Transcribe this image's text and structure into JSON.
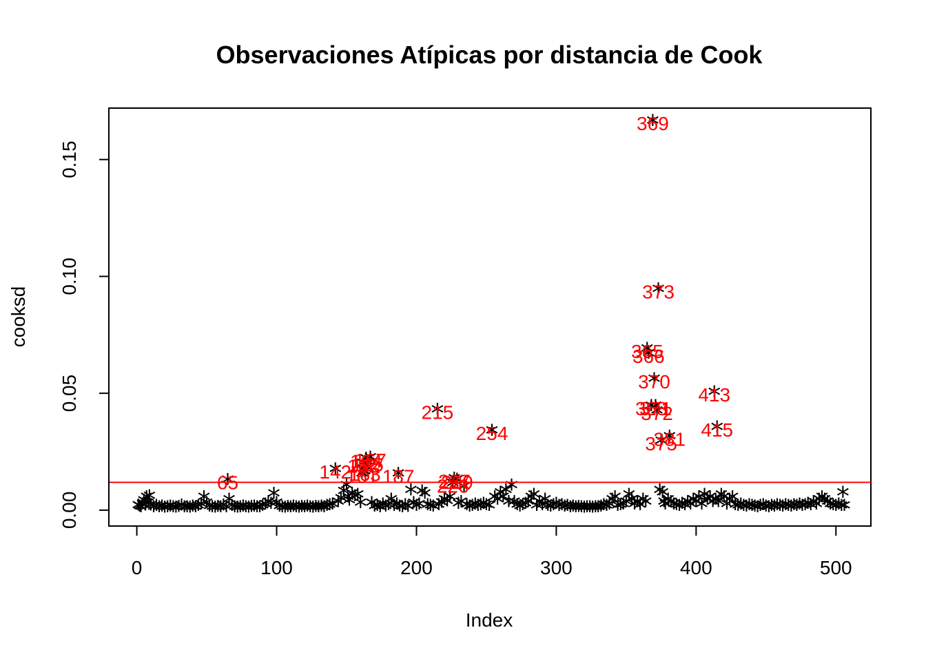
{
  "chart_data": {
    "type": "scatter",
    "title": "Observaciones Atípicas por distancia de Cook",
    "xlabel": "Index",
    "ylabel": "cooksd",
    "xlim": [
      -20,
      525
    ],
    "ylim": [
      -0.0068,
      0.172
    ],
    "x_ticks": [
      0,
      100,
      200,
      300,
      400,
      500
    ],
    "y_ticks": [
      0.0,
      0.05,
      0.1,
      0.15
    ],
    "y_tick_labels": [
      "0.00",
      "0.05",
      "0.10",
      "0.15"
    ],
    "x_tick_labels": [
      "0",
      "100",
      "200",
      "300",
      "400",
      "500"
    ],
    "marker": "*",
    "marker_color": "#000000",
    "grid": false,
    "cutoff_line": {
      "y": 0.0119,
      "color": "#ff0000"
    },
    "label_color": "#ff0000",
    "points": [
      [
        1,
        0.001
      ],
      [
        2,
        0.0005
      ],
      [
        3,
        0.0002
      ],
      [
        4,
        0.0015
      ],
      [
        5,
        0.003
      ],
      [
        6,
        0.001
      ],
      [
        7,
        0.0045
      ],
      [
        8,
        0.002
      ],
      [
        9,
        0.005
      ],
      [
        10,
        0.001
      ],
      [
        12,
        0.0003
      ],
      [
        14,
        0.0008
      ],
      [
        16,
        0.0002
      ],
      [
        18,
        0.0005
      ],
      [
        20,
        0.0001
      ],
      [
        22,
        0.0003
      ],
      [
        24,
        0.0006
      ],
      [
        26,
        0.0002
      ],
      [
        28,
        0.0001
      ],
      [
        30,
        0.0004
      ],
      [
        32,
        0.001
      ],
      [
        34,
        0.0002
      ],
      [
        36,
        0.0003
      ],
      [
        38,
        0.0001
      ],
      [
        40,
        0.0005
      ],
      [
        42,
        0.0002
      ],
      [
        44,
        0.0008
      ],
      [
        46,
        0.0015
      ],
      [
        48,
        0.0045
      ],
      [
        50,
        0.002
      ],
      [
        52,
        0.0005
      ],
      [
        54,
        0.0003
      ],
      [
        56,
        0.0001
      ],
      [
        58,
        0.0004
      ],
      [
        60,
        0.0002
      ],
      [
        62,
        0.001
      ],
      [
        64,
        0.0003
      ],
      [
        65,
        0.0119
      ],
      [
        66,
        0.0035
      ],
      [
        68,
        0.0008
      ],
      [
        70,
        0.0002
      ],
      [
        72,
        0.0001
      ],
      [
        74,
        0.0003
      ],
      [
        76,
        0.0005
      ],
      [
        78,
        0.0002
      ],
      [
        80,
        0.0001
      ],
      [
        82,
        0.0004
      ],
      [
        84,
        0.0006
      ],
      [
        86,
        0.0002
      ],
      [
        88,
        0.0003
      ],
      [
        90,
        0.0008
      ],
      [
        92,
        0.0015
      ],
      [
        94,
        0.0025
      ],
      [
        96,
        0.0018
      ],
      [
        98,
        0.006
      ],
      [
        100,
        0.002
      ],
      [
        102,
        0.0005
      ],
      [
        104,
        0.0003
      ],
      [
        106,
        0.0001
      ],
      [
        108,
        0.0004
      ],
      [
        110,
        0.0002
      ],
      [
        112,
        0.0006
      ],
      [
        114,
        0.0003
      ],
      [
        116,
        0.0001
      ],
      [
        118,
        0.0004
      ],
      [
        120,
        0.0002
      ],
      [
        122,
        0.0005
      ],
      [
        124,
        0.0003
      ],
      [
        126,
        0.0001
      ],
      [
        128,
        0.0004
      ],
      [
        130,
        0.0002
      ],
      [
        132,
        0.0006
      ],
      [
        134,
        0.0003
      ],
      [
        136,
        0.0008
      ],
      [
        138,
        0.0012
      ],
      [
        140,
        0.0015
      ],
      [
        142,
        0.0165
      ],
      [
        144,
        0.0025
      ],
      [
        146,
        0.004
      ],
      [
        148,
        0.007
      ],
      [
        150,
        0.0095
      ],
      [
        151,
        0.0045
      ],
      [
        152,
        0.003
      ],
      [
        154,
        0.006
      ],
      [
        156,
        0.005
      ],
      [
        158,
        0.0055
      ],
      [
        160,
        0.002
      ],
      [
        161,
        0.0145
      ],
      [
        162,
        0.019
      ],
      [
        163,
        0.0155
      ],
      [
        164,
        0.021
      ],
      [
        165,
        0.0195
      ],
      [
        167,
        0.0215
      ],
      [
        168,
        0.002
      ],
      [
        170,
        0.0005
      ],
      [
        172,
        0.0008
      ],
      [
        174,
        0.0003
      ],
      [
        176,
        0.0015
      ],
      [
        178,
        0.0005
      ],
      [
        180,
        0.0012
      ],
      [
        182,
        0.0035
      ],
      [
        184,
        0.0008
      ],
      [
        186,
        0.0015
      ],
      [
        187,
        0.0145
      ],
      [
        188,
        0.0006
      ],
      [
        190,
        0.0003
      ],
      [
        192,
        0.0012
      ],
      [
        194,
        0.0004
      ],
      [
        196,
        0.0075
      ],
      [
        198,
        0.002
      ],
      [
        200,
        0.0008
      ],
      [
        202,
        0.0015
      ],
      [
        204,
        0.007
      ],
      [
        206,
        0.006
      ],
      [
        208,
        0.0012
      ],
      [
        210,
        0.0008
      ],
      [
        212,
        0.0005
      ],
      [
        215,
        0.042
      ],
      [
        216,
        0.0012
      ],
      [
        218,
        0.0022
      ],
      [
        220,
        0.0035
      ],
      [
        222,
        0.0028
      ],
      [
        224,
        0.0045
      ],
      [
        226,
        0.0105
      ],
      [
        227,
        0.0125
      ],
      [
        229,
        0.012
      ],
      [
        230,
        0.0018
      ],
      [
        232,
        0.0025
      ],
      [
        234,
        0.009
      ],
      [
        236,
        0.0012
      ],
      [
        238,
        0.0005
      ],
      [
        240,
        0.0008
      ],
      [
        242,
        0.0015
      ],
      [
        244,
        0.0008
      ],
      [
        246,
        0.0012
      ],
      [
        248,
        0.0018
      ],
      [
        250,
        0.0012
      ],
      [
        252,
        0.0008
      ],
      [
        254,
        0.033
      ],
      [
        256,
        0.0045
      ],
      [
        258,
        0.0035
      ],
      [
        260,
        0.0065
      ],
      [
        262,
        0.0045
      ],
      [
        264,
        0.0075
      ],
      [
        266,
        0.0025
      ],
      [
        268,
        0.0095
      ],
      [
        270,
        0.0025
      ],
      [
        272,
        0.0012
      ],
      [
        274,
        0.0005
      ],
      [
        276,
        0.0012
      ],
      [
        278,
        0.0018
      ],
      [
        280,
        0.0025
      ],
      [
        282,
        0.0045
      ],
      [
        284,
        0.0055
      ],
      [
        286,
        0.0008
      ],
      [
        288,
        0.0025
      ],
      [
        290,
        0.0012
      ],
      [
        292,
        0.0035
      ],
      [
        294,
        0.0008
      ],
      [
        296,
        0.0005
      ],
      [
        298,
        0.0012
      ],
      [
        300,
        0.0018
      ],
      [
        302,
        0.0008
      ],
      [
        304,
        0.0012
      ],
      [
        306,
        0.0005
      ],
      [
        308,
        0.0008
      ],
      [
        310,
        0.0003
      ],
      [
        312,
        0.0005
      ],
      [
        314,
        0.0002
      ],
      [
        316,
        0.0004
      ],
      [
        318,
        0.0002
      ],
      [
        320,
        0.0001
      ],
      [
        322,
        0.0003
      ],
      [
        324,
        0.0002
      ],
      [
        326,
        0.0001
      ],
      [
        328,
        0.0003
      ],
      [
        330,
        0.0002
      ],
      [
        332,
        0.0005
      ],
      [
        334,
        0.0012
      ],
      [
        336,
        0.0008
      ],
      [
        338,
        0.0015
      ],
      [
        340,
        0.0035
      ],
      [
        342,
        0.0045
      ],
      [
        344,
        0.0008
      ],
      [
        346,
        0.0012
      ],
      [
        348,
        0.0015
      ],
      [
        350,
        0.0025
      ],
      [
        352,
        0.0055
      ],
      [
        354,
        0.0035
      ],
      [
        356,
        0.0015
      ],
      [
        358,
        0.0025
      ],
      [
        360,
        0.0012
      ],
      [
        362,
        0.0035
      ],
      [
        364,
        0.0025
      ],
      [
        365,
        0.068
      ],
      [
        366,
        0.066
      ],
      [
        368,
        0.0435
      ],
      [
        369,
        0.1655
      ],
      [
        370,
        0.055
      ],
      [
        371,
        0.0435
      ],
      [
        372,
        0.0415
      ],
      [
        373,
        0.0935
      ],
      [
        374,
        0.0075
      ],
      [
        375,
        0.0285
      ],
      [
        376,
        0.0065
      ],
      [
        377,
        0.0025
      ],
      [
        378,
        0.0015
      ],
      [
        380,
        0.0035
      ],
      [
        381,
        0.0305
      ],
      [
        382,
        0.0025
      ],
      [
        384,
        0.0015
      ],
      [
        386,
        0.0012
      ],
      [
        388,
        0.0008
      ],
      [
        390,
        0.0018
      ],
      [
        392,
        0.0012
      ],
      [
        394,
        0.0025
      ],
      [
        396,
        0.0015
      ],
      [
        398,
        0.0035
      ],
      [
        400,
        0.0025
      ],
      [
        402,
        0.0045
      ],
      [
        404,
        0.0015
      ],
      [
        406,
        0.0055
      ],
      [
        408,
        0.0035
      ],
      [
        410,
        0.0045
      ],
      [
        412,
        0.0025
      ],
      [
        413,
        0.0495
      ],
      [
        414,
        0.0035
      ],
      [
        415,
        0.0345
      ],
      [
        416,
        0.0025
      ],
      [
        418,
        0.0055
      ],
      [
        420,
        0.0045
      ],
      [
        422,
        0.0015
      ],
      [
        424,
        0.0035
      ],
      [
        426,
        0.0045
      ],
      [
        428,
        0.0012
      ],
      [
        430,
        0.0008
      ],
      [
        432,
        0.0015
      ],
      [
        434,
        0.0008
      ],
      [
        436,
        0.0005
      ],
      [
        438,
        0.0012
      ],
      [
        440,
        0.0008
      ],
      [
        442,
        0.0005
      ],
      [
        444,
        0.0003
      ],
      [
        446,
        0.0008
      ],
      [
        448,
        0.0012
      ],
      [
        450,
        0.0005
      ],
      [
        452,
        0.0003
      ],
      [
        454,
        0.0008
      ],
      [
        456,
        0.0005
      ],
      [
        458,
        0.0012
      ],
      [
        460,
        0.0008
      ],
      [
        462,
        0.0005
      ],
      [
        464,
        0.0012
      ],
      [
        466,
        0.0008
      ],
      [
        468,
        0.0005
      ],
      [
        470,
        0.0012
      ],
      [
        472,
        0.0008
      ],
      [
        474,
        0.0015
      ],
      [
        476,
        0.0008
      ],
      [
        478,
        0.0012
      ],
      [
        480,
        0.0018
      ],
      [
        482,
        0.0012
      ],
      [
        484,
        0.0025
      ],
      [
        486,
        0.0015
      ],
      [
        488,
        0.0035
      ],
      [
        490,
        0.0045
      ],
      [
        492,
        0.0035
      ],
      [
        494,
        0.0025
      ],
      [
        496,
        0.0015
      ],
      [
        498,
        0.0012
      ],
      [
        500,
        0.0008
      ],
      [
        502,
        0.0015
      ],
      [
        504,
        0.0008
      ],
      [
        505,
        0.0065
      ],
      [
        506,
        0.0008
      ]
    ],
    "labels": [
      {
        "text": "65",
        "x": 65,
        "y": 0.0119
      },
      {
        "text": "142",
        "x": 142,
        "y": 0.0165
      },
      {
        "text": "161",
        "x": 161,
        "y": 0.0145
      },
      {
        "text": "162",
        "x": 162,
        "y": 0.019
      },
      {
        "text": "163",
        "x": 163,
        "y": 0.0155
      },
      {
        "text": "164",
        "x": 164,
        "y": 0.021
      },
      {
        "text": "165",
        "x": 165,
        "y": 0.0195
      },
      {
        "text": "167",
        "x": 167,
        "y": 0.0215
      },
      {
        "text": "187",
        "x": 187,
        "y": 0.0145
      },
      {
        "text": "215",
        "x": 215,
        "y": 0.042
      },
      {
        "text": "226",
        "x": 226,
        "y": 0.0105
      },
      {
        "text": "227",
        "x": 227,
        "y": 0.0125
      },
      {
        "text": "229",
        "x": 229,
        "y": 0.012
      },
      {
        "text": "254",
        "x": 254,
        "y": 0.033
      },
      {
        "text": "365",
        "x": 365,
        "y": 0.068
      },
      {
        "text": "366",
        "x": 366,
        "y": 0.066
      },
      {
        "text": "368",
        "x": 368,
        "y": 0.0435
      },
      {
        "text": "369",
        "x": 369,
        "y": 0.1655
      },
      {
        "text": "370",
        "x": 370,
        "y": 0.055
      },
      {
        "text": "371",
        "x": 371,
        "y": 0.0435
      },
      {
        "text": "372",
        "x": 372,
        "y": 0.0415
      },
      {
        "text": "373",
        "x": 373,
        "y": 0.0935
      },
      {
        "text": "375",
        "x": 375,
        "y": 0.0285
      },
      {
        "text": "381",
        "x": 381,
        "y": 0.0305
      },
      {
        "text": "413",
        "x": 413,
        "y": 0.0495
      },
      {
        "text": "415",
        "x": 415,
        "y": 0.0345
      }
    ]
  }
}
